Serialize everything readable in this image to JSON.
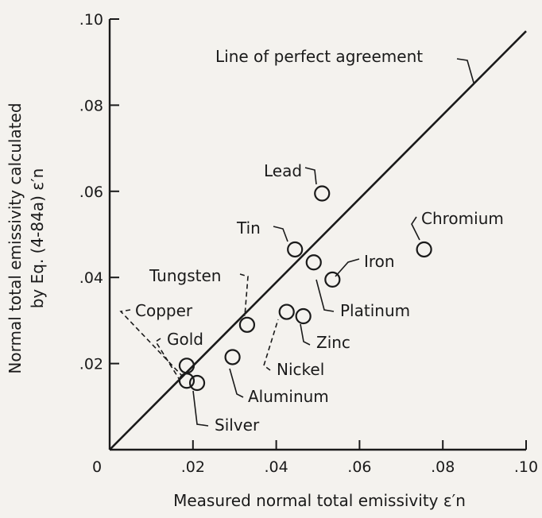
{
  "chart_data": {
    "type": "scatter",
    "xlabel": "Measured normal total emissivity",
    "xlabel_symbol": "ε′n",
    "ylabel_line1": "Normal total emissivity calculated",
    "ylabel_line2": "by Eq. (4-84a)",
    "ylabel_symbol": "ε′n",
    "xlim": [
      0,
      0.1
    ],
    "ylim": [
      0,
      0.1
    ],
    "x_ticks": [
      0,
      0.02,
      0.04,
      0.06,
      0.08,
      0.1
    ],
    "x_tick_labels": [
      "0",
      ".02",
      ".04",
      ".06",
      ".08",
      ".10"
    ],
    "y_ticks": [
      0.02,
      0.04,
      0.06,
      0.08,
      0.1
    ],
    "y_tick_labels": [
      ".02",
      ".04",
      ".06",
      ".08",
      ".10"
    ],
    "reference_line_label": "Line of perfect agreement",
    "points": [
      {
        "name": "Lead",
        "x": 0.051,
        "y": 0.0595
      },
      {
        "name": "Chromium",
        "x": 0.0755,
        "y": 0.0465
      },
      {
        "name": "Tin",
        "x": 0.0445,
        "y": 0.0465
      },
      {
        "name": "Platinum",
        "x": 0.049,
        "y": 0.0435
      },
      {
        "name": "Iron",
        "x": 0.0535,
        "y": 0.0395
      },
      {
        "name": "Tungsten",
        "x": 0.033,
        "y": 0.029
      },
      {
        "name": "Nickel",
        "x": 0.0425,
        "y": 0.032
      },
      {
        "name": "Zinc",
        "x": 0.0465,
        "y": 0.031
      },
      {
        "name": "Aluminum",
        "x": 0.0295,
        "y": 0.0215
      },
      {
        "name": "Copper",
        "x": 0.0185,
        "y": 0.0195
      },
      {
        "name": "Gold",
        "x": 0.0185,
        "y": 0.016
      },
      {
        "name": "Silver",
        "x": 0.021,
        "y": 0.0155
      }
    ]
  }
}
